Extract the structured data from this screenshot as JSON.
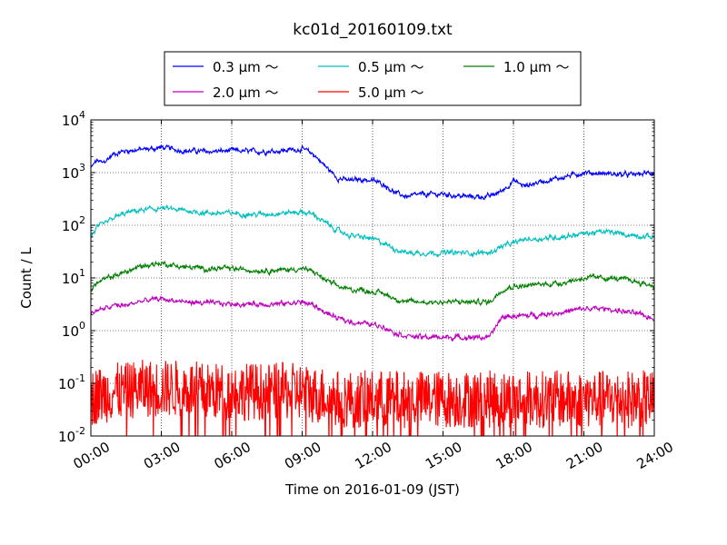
{
  "chart_data": {
    "type": "line",
    "title": "kc01d_20160109.txt",
    "xlabel": "Time on 2016-01-09 (JST)",
    "ylabel": "Count / L",
    "yscale": "log",
    "ylim": [
      0.01,
      10000
    ],
    "xlim": [
      "00:00",
      "24:00"
    ],
    "x_ticks": [
      "00:00",
      "03:00",
      "06:00",
      "09:00",
      "12:00",
      "15:00",
      "18:00",
      "21:00",
      "24:00"
    ],
    "y_ticks": [
      {
        "base": "10",
        "exp": "-2"
      },
      {
        "base": "10",
        "exp": "-1"
      },
      {
        "base": "10",
        "exp": "0"
      },
      {
        "base": "10",
        "exp": "1"
      },
      {
        "base": "10",
        "exp": "2"
      },
      {
        "base": "10",
        "exp": "3"
      },
      {
        "base": "10",
        "exp": "4"
      }
    ],
    "grid": true,
    "legend_position": "top",
    "x_hours": [
      0,
      0.25,
      0.5,
      1,
      1.5,
      2,
      2.5,
      3,
      4,
      5,
      6,
      7,
      8,
      9,
      9.5,
      10,
      10.5,
      11,
      11.5,
      12,
      12.5,
      13,
      13.5,
      14,
      15,
      16,
      17,
      17.5,
      18,
      18.5,
      19,
      20,
      21,
      22,
      23,
      24
    ],
    "series": [
      {
        "name": "0.3 μm ～",
        "color": "#0000ff",
        "noise": 0.06,
        "values": [
          1200,
          1700,
          1500,
          2300,
          2600,
          2700,
          2800,
          3000,
          2600,
          2500,
          2600,
          2500,
          2600,
          2800,
          2200,
          1300,
          800,
          700,
          750,
          700,
          600,
          400,
          350,
          380,
          390,
          350,
          350,
          450,
          700,
          550,
          650,
          800,
          1000,
          950,
          900,
          1000
        ]
      },
      {
        "name": "0.5 μm ～",
        "color": "#00bfbf",
        "noise": 0.06,
        "values": [
          60,
          90,
          100,
          140,
          170,
          190,
          200,
          210,
          190,
          170,
          170,
          160,
          170,
          180,
          160,
          110,
          80,
          65,
          60,
          55,
          45,
          35,
          30,
          30,
          30,
          30,
          30,
          40,
          45,
          55,
          55,
          60,
          70,
          75,
          65,
          60
        ]
      },
      {
        "name": "1.0 μm ～",
        "color": "#008000",
        "noise": 0.06,
        "values": [
          6,
          8,
          9,
          11,
          13,
          16,
          18,
          19,
          16,
          15,
          15,
          14,
          14,
          15,
          13,
          9,
          7,
          6,
          6,
          5.5,
          5,
          4,
          3.5,
          3.5,
          3.5,
          3.5,
          3.5,
          6,
          7,
          7,
          7.5,
          8,
          10,
          10,
          9,
          7
        ]
      },
      {
        "name": "2.0 μm ～",
        "color": "#bf00bf",
        "noise": 0.06,
        "values": [
          2,
          2.5,
          2.5,
          3,
          3,
          3.5,
          3.8,
          4,
          3.5,
          3.3,
          3.2,
          3.2,
          3.2,
          3.5,
          3,
          2.2,
          1.7,
          1.5,
          1.4,
          1.3,
          1.2,
          0.9,
          0.8,
          0.75,
          0.75,
          0.75,
          0.75,
          1.8,
          1.9,
          1.9,
          2,
          2.2,
          2.6,
          2.6,
          2.2,
          1.7
        ]
      },
      {
        "name": "5.0 μm ～",
        "color": "#ff0000",
        "noise": 0.55,
        "values": [
          0.05,
          0.06,
          0.06,
          0.07,
          0.07,
          0.08,
          0.08,
          0.08,
          0.08,
          0.07,
          0.07,
          0.07,
          0.07,
          0.07,
          0.06,
          0.06,
          0.05,
          0.05,
          0.05,
          0.05,
          0.05,
          0.05,
          0.05,
          0.05,
          0.05,
          0.05,
          0.05,
          0.05,
          0.05,
          0.05,
          0.05,
          0.05,
          0.05,
          0.05,
          0.05,
          0.05
        ]
      }
    ]
  }
}
